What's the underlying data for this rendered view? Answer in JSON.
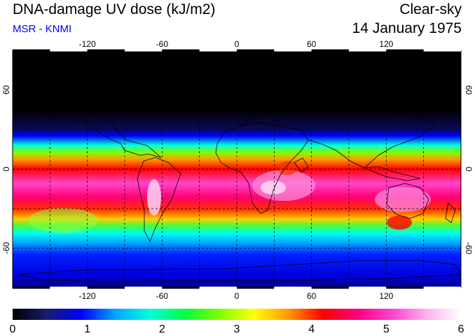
{
  "header": {
    "title": "DNA-damage UV dose (kJ/m2)",
    "subtitle": "MSR - KNMI",
    "subtitle_color": "#0000ff",
    "condition": "Clear-sky",
    "date": "14 January 1975"
  },
  "map": {
    "lon_ticks": [
      -120,
      -60,
      0,
      60,
      120
    ],
    "lat_ticks": [
      60,
      0,
      -60
    ],
    "lon_range": [
      -180,
      180
    ],
    "lat_range": [
      -90,
      90
    ]
  },
  "colorbar": {
    "min": 0,
    "max": 6,
    "labels": [
      "0",
      "1",
      "2",
      "3",
      "4",
      "5",
      "6"
    ],
    "stops": [
      "#000000",
      "#1a1a70",
      "#0000ff",
      "#00aaff",
      "#00ffdd",
      "#00ff40",
      "#80ff00",
      "#ffff00",
      "#ff9900",
      "#ff0000",
      "#ff0080",
      "#ff44cc",
      "#ffb0ee",
      "#ffffff"
    ]
  }
}
